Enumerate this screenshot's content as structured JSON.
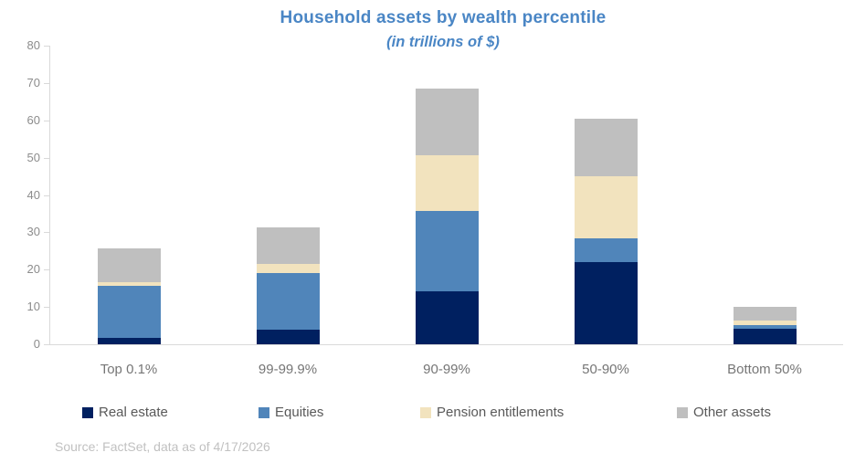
{
  "chart_data": {
    "type": "bar",
    "stacked": true,
    "title": "Household assets by wealth percentile",
    "subtitle": "(in trillions of $)",
    "categories": [
      "Top 0.1%",
      "99-99.9%",
      "90-99%",
      "50-90%",
      "Bottom 50%"
    ],
    "series": [
      {
        "name": "Real estate",
        "color": "#002060",
        "values": [
          1.6,
          4.0,
          14.1,
          21.9,
          4.1
        ]
      },
      {
        "name": "Equities",
        "color": "#5085BA",
        "values": [
          14.0,
          15.0,
          21.6,
          6.6,
          1.0
        ]
      },
      {
        "name": "Pension entitlements",
        "color": "#F2E3BE",
        "values": [
          1.0,
          2.6,
          15.0,
          16.4,
          1.2
        ]
      },
      {
        "name": "Other assets",
        "color": "#BFBFBF",
        "values": [
          9.0,
          9.6,
          17.7,
          15.6,
          3.8
        ]
      }
    ],
    "totals": [
      25.6,
      31.2,
      68.4,
      60.5,
      10.1
    ],
    "xlabel": "",
    "ylabel": "",
    "ylim": [
      0,
      80
    ],
    "ytick_step": 10,
    "yticks": [
      0,
      10,
      20,
      30,
      40,
      50,
      60,
      70,
      80
    ],
    "grid": false,
    "legend_position": "bottom",
    "source": "Source: FactSet, data as of 4/17/2026"
  },
  "colors": {
    "title_text": "#4A86C5",
    "axis_line": "#D9D9D9",
    "y_tick_label": "#8C8C8C",
    "x_tick_label": "#767676",
    "legend_text": "#595959",
    "source_text": "#C1C1C1",
    "background": "#FFFFFF"
  }
}
